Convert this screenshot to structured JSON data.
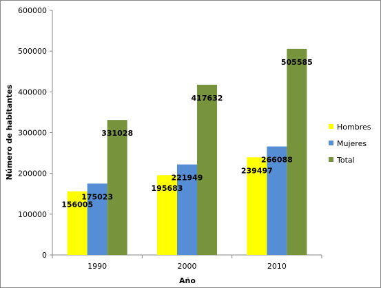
{
  "chart_data": {
    "type": "bar",
    "categories": [
      "1990",
      "2000",
      "2010"
    ],
    "series": [
      {
        "name": "Hombres",
        "color": "#FFFF00",
        "values": [
          156005,
          195683,
          239497
        ]
      },
      {
        "name": "Mujeres",
        "color": "#558ED5",
        "values": [
          175023,
          221949,
          266088
        ]
      },
      {
        "name": "Total",
        "color": "#77933C",
        "values": [
          331028,
          417632,
          505585
        ]
      }
    ],
    "xlabel": "Año",
    "ylabel": "Número de habitantes",
    "ylim": [
      0,
      600000
    ],
    "yticks": [
      "0",
      "100000",
      "200000",
      "300000",
      "400000",
      "500000",
      "600000"
    ],
    "grid": false,
    "legend": "right"
  }
}
